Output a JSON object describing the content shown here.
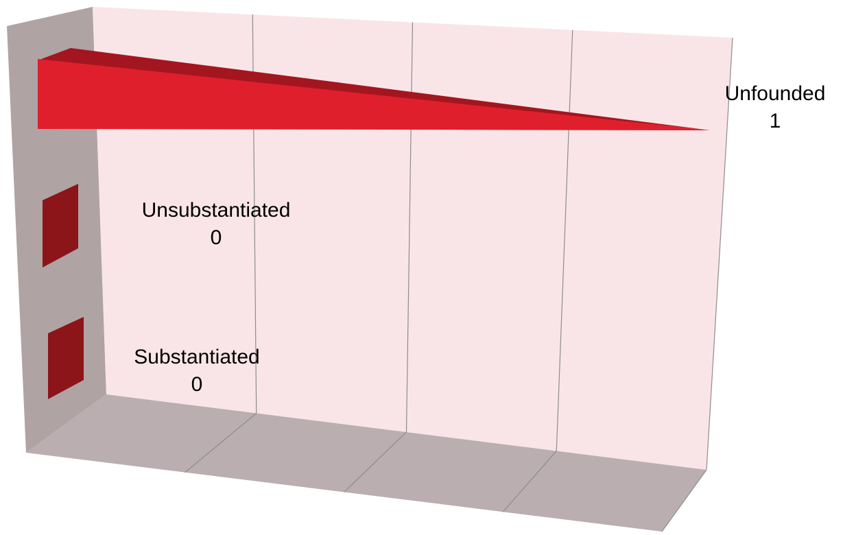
{
  "chart_data": {
    "type": "bar",
    "orientation": "horizontal",
    "style": "3d-cone",
    "categories": [
      "Substantiated",
      "Unsubstantiated",
      "Unfounded"
    ],
    "values": [
      0,
      0,
      1
    ],
    "xlim": [
      0,
      1
    ],
    "grid": true,
    "legend": "none",
    "data_labels": [
      {
        "category": "Substantiated",
        "value": "0"
      },
      {
        "category": "Unsubstantiated",
        "value": "0"
      },
      {
        "category": "Unfounded",
        "value": "1"
      }
    ]
  },
  "colors": {
    "bar_front": "#e01f2d",
    "bar_top": "#a3161f",
    "bar_stub": "#8b1519",
    "back_wall": "#f9e5e7",
    "side_wall": "#afa3a4",
    "floor": "#bbaeb0",
    "gridline": "#8c8c8c"
  }
}
